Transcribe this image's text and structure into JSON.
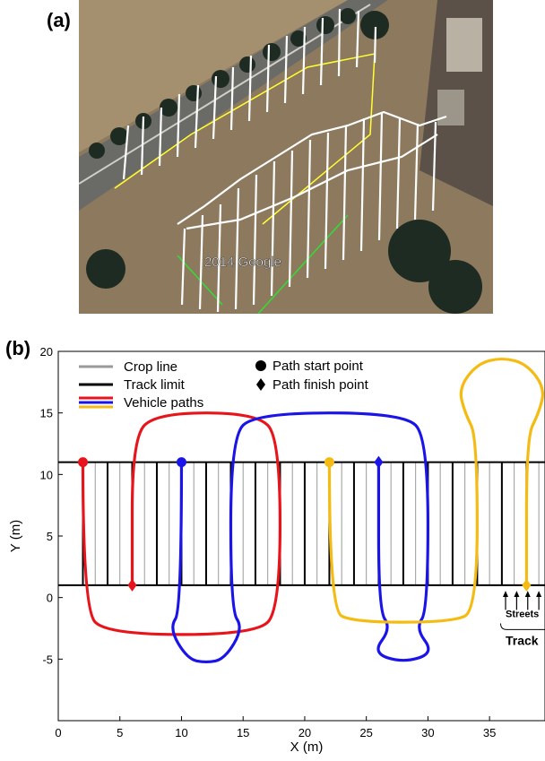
{
  "panels": {
    "a_label": "(a)",
    "b_label": "(b)"
  },
  "photo": {
    "watermark": "2014 Google"
  },
  "chart_data": {
    "type": "line",
    "title": "",
    "xlabel": "X (m)",
    "ylabel": "Y (m)",
    "xlim": [
      0,
      39.5
    ],
    "ylim": [
      -10,
      20
    ],
    "xticks": [
      0,
      5,
      10,
      15,
      20,
      25,
      30,
      35
    ],
    "yticks": [
      20,
      15,
      10,
      5,
      0,
      -5
    ],
    "ytick_labels": [
      "20",
      "15",
      "10",
      "5",
      "0",
      "-5"
    ],
    "grid": false,
    "legend": {
      "position": "top-left",
      "items": [
        {
          "label": "Crop line",
          "color": "#9a9a9a",
          "kind": "line"
        },
        {
          "label": "Track limit",
          "color": "#000000",
          "kind": "line"
        },
        {
          "label": "Vehicle paths",
          "colors": [
            "#e8141b",
            "#1a14e8",
            "#f4bb13"
          ],
          "kind": "lines"
        },
        {
          "label": "Path start point",
          "kind": "circle"
        },
        {
          "label": "Path finish point",
          "kind": "diamond"
        }
      ]
    },
    "track": {
      "y_bottom": 1,
      "y_top": 11,
      "x_start": 0,
      "x_end": 39.5
    },
    "crop_lines_x": [
      3,
      5,
      7,
      9,
      11,
      13,
      15,
      17,
      19,
      21,
      23,
      25,
      27,
      29,
      31,
      33,
      35,
      37,
      39
    ],
    "track_limits_x": [
      2,
      4,
      6,
      8,
      10,
      12,
      14,
      16,
      18,
      20,
      22,
      24,
      26,
      28,
      30,
      32,
      34,
      36,
      38
    ],
    "series": [
      {
        "color": "#e8141b",
        "points": [
          [
            2,
            11
          ],
          [
            2,
            -1
          ],
          [
            4,
            -3
          ],
          [
            16,
            -3
          ],
          [
            18,
            -1
          ],
          [
            18,
            13
          ],
          [
            16,
            15
          ],
          [
            8,
            15
          ],
          [
            6,
            13
          ],
          [
            6,
            1
          ]
        ],
        "start": [
          2,
          11
        ],
        "finish": [
          6,
          1
        ]
      },
      {
        "color": "#1a14e8",
        "points": [
          [
            10,
            11
          ],
          [
            10,
            -1
          ],
          [
            9,
            -2.5
          ],
          [
            10.5,
            -5
          ],
          [
            12,
            -5.3
          ],
          [
            13.5,
            -5
          ],
          [
            15,
            -2.5
          ],
          [
            14,
            -1
          ],
          [
            14,
            13
          ],
          [
            16,
            15
          ],
          [
            28,
            15
          ],
          [
            30,
            13
          ],
          [
            30,
            -1
          ],
          [
            29,
            -2.5
          ],
          [
            30.5,
            -4.5
          ],
          [
            28,
            -5.3
          ],
          [
            25.5,
            -4.5
          ],
          [
            27,
            -2.5
          ],
          [
            26,
            -1
          ],
          [
            26,
            11
          ]
        ],
        "start": [
          10,
          11
        ],
        "finish": [
          26,
          11
        ]
      },
      {
        "color": "#f4bb13",
        "points": [
          [
            22,
            11
          ],
          [
            22,
            -1
          ],
          [
            24,
            -2
          ],
          [
            32,
            -2
          ],
          [
            34,
            -1
          ],
          [
            34,
            13
          ],
          [
            33,
            15
          ],
          [
            32.5,
            17
          ],
          [
            34,
            19
          ],
          [
            36,
            19.5
          ],
          [
            38,
            19
          ],
          [
            39.5,
            17
          ],
          [
            39,
            15
          ],
          [
            38,
            13
          ],
          [
            38,
            1
          ]
        ],
        "start": [
          22,
          11
        ],
        "finish": [
          38,
          1
        ]
      }
    ],
    "annotations": [
      {
        "text": "Streets",
        "x": 36.3,
        "y": -1.3
      },
      {
        "text": "Track",
        "x": 36.3,
        "y": -3.5
      }
    ]
  }
}
